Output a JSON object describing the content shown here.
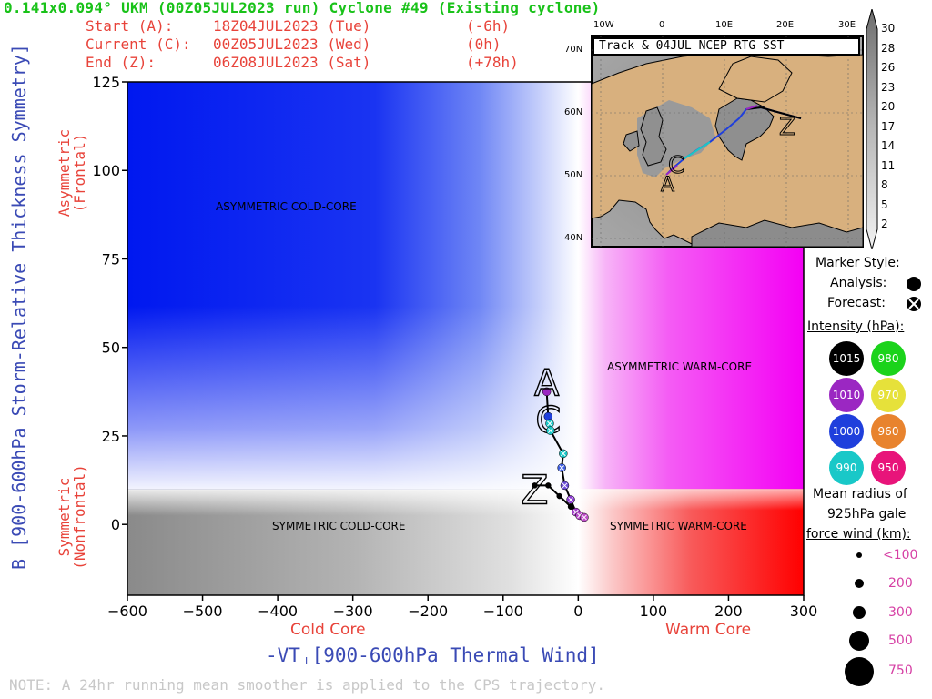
{
  "header": {
    "title": "0.141x0.094° UKM (00Z05JUL2023 run) Cyclone #49 (Existing cyclone)",
    "rows": [
      {
        "label": "Start (A):",
        "value": "18Z04JUL2023 (Tue)",
        "offset": "(-6h)"
      },
      {
        "label": "Current (C):",
        "value": "00Z05JUL2023 (Wed)",
        "offset": "(0h)"
      },
      {
        "label": "End (Z):",
        "value": "06Z08JUL2023 (Sat)",
        "offset": "(+78h)"
      }
    ]
  },
  "axes": {
    "y_main": "B [900-600hPa Storm-Relative Thickness Symmetry]",
    "y_upper": [
      "Asymmetric",
      "(Frontal)"
    ],
    "y_lower": [
      "Symmetric",
      "(Nonfrontal)"
    ],
    "x_main": "-VT  [900-600hPa Thermal Wind]",
    "x_sym": "L",
    "x_cold": "Cold Core",
    "x_warm": "Warm Core"
  },
  "regions": {
    "asym_cold": "ASYMMETRIC COLD-CORE",
    "asym_warm": "ASYMMETRIC WARM-CORE",
    "sym_cold": "SYMMETRIC COLD-CORE",
    "sym_warm": "SYMMETRIC WARM-CORE"
  },
  "map": {
    "title": "Track & 04JUL NCEP RTG SST",
    "lon_labels": [
      "10W",
      "0",
      "10E",
      "20E",
      "30E"
    ],
    "lat_labels": [
      "70N",
      "60N",
      "50N",
      "40N"
    ],
    "colorbar": [
      "30",
      "28",
      "26",
      "23",
      "20",
      "17",
      "14",
      "11",
      "8",
      "5",
      "2"
    ]
  },
  "legend": {
    "marker_style": "Marker Style:",
    "analysis": "Analysis:",
    "forecast": "Forecast:",
    "intensity_title": "Intensity (hPa):",
    "intensity": [
      {
        "label": "1015",
        "color": "#000000"
      },
      {
        "label": "980",
        "color": "#1bd31b"
      },
      {
        "label": "1010",
        "color": "#9b27c2"
      },
      {
        "label": "970",
        "color": "#e6e13a"
      },
      {
        "label": "1000",
        "color": "#1f3fdc"
      },
      {
        "label": "960",
        "color": "#e8832e"
      },
      {
        "label": "990",
        "color": "#19c8c8"
      },
      {
        "label": "950",
        "color": "#e8147a"
      }
    ],
    "radius_title": [
      "Mean radius of",
      "925hPa gale",
      "force wind (km):"
    ],
    "radius": [
      "<100",
      "200",
      "300",
      "500",
      "750"
    ]
  },
  "note": "NOTE:  A 24hr running mean smoother is applied to the CPS trajectory.",
  "chart_data": {
    "type": "scatter",
    "xlim": [
      -600,
      300
    ],
    "ylim": [
      -20,
      125
    ],
    "x_ticks": [
      -600,
      -500,
      -400,
      -300,
      -200,
      -100,
      0,
      100,
      200,
      300
    ],
    "y_ticks": [
      0,
      25,
      50,
      75,
      100,
      125
    ],
    "track": [
      {
        "x": -42,
        "y": 37.5,
        "color": "#9b27c2",
        "marker": "A"
      },
      {
        "x": -40,
        "y": 30.5,
        "color": "#1f3fdc",
        "marker": "C"
      },
      {
        "x": -38,
        "y": 28.5,
        "color": "#19c8c8"
      },
      {
        "x": -37,
        "y": 26.5,
        "color": "#19c8c8"
      },
      {
        "x": -20,
        "y": 20,
        "color": "#19c8c8"
      },
      {
        "x": -22,
        "y": 16,
        "color": "#3c5ce0"
      },
      {
        "x": -18,
        "y": 11,
        "color": "#6f4fd8"
      },
      {
        "x": -10,
        "y": 7,
        "color": "#8a3ad0"
      },
      {
        "x": -3,
        "y": 3.5,
        "color": "#a53ccc"
      },
      {
        "x": 2,
        "y": 2.5,
        "color": "#b84acb"
      },
      {
        "x": 8,
        "y": 2,
        "color": "#c04fc9"
      },
      {
        "x": -10,
        "y": 5,
        "color": "#000000"
      },
      {
        "x": -25,
        "y": 8,
        "color": "#000000"
      },
      {
        "x": -40,
        "y": 11,
        "color": "#000000"
      },
      {
        "x": -58,
        "y": 11,
        "color": "#000000",
        "marker": "Z"
      }
    ]
  }
}
